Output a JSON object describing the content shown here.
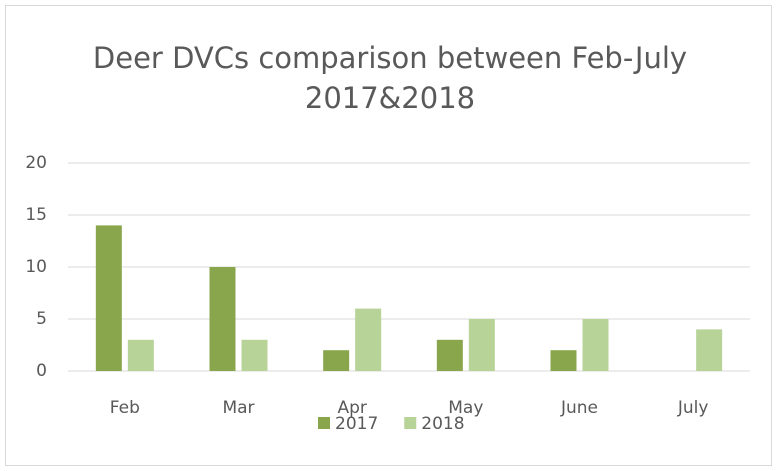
{
  "chart_data": {
    "type": "bar",
    "title": "Deer DVCs comparison between Feb-July 2017&2018",
    "categories": [
      "Feb",
      "Mar",
      "Apr",
      "May",
      "June",
      "July"
    ],
    "series": [
      {
        "name": "2017",
        "color": "#8aa64d",
        "values": [
          14,
          10,
          2,
          3,
          2,
          null
        ]
      },
      {
        "name": "2018",
        "color": "#b7d397",
        "values": [
          3,
          3,
          6,
          5,
          5,
          4
        ]
      }
    ],
    "ylim": [
      0,
      20
    ],
    "yticks": [
      0,
      5,
      10,
      15,
      20
    ],
    "grid": true,
    "legend": "bottom"
  }
}
